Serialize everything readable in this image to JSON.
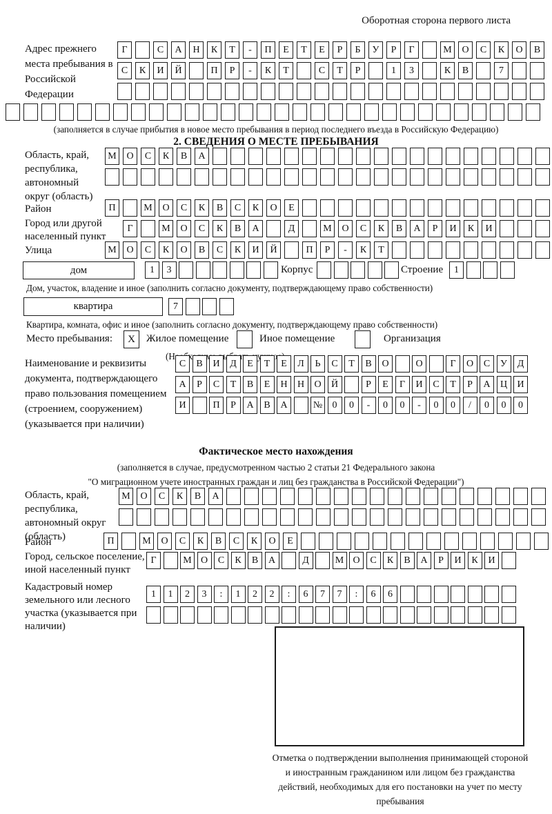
{
  "page": {
    "header_note": "Оборотная сторона первого листа"
  },
  "prev_address": {
    "label": "Адрес прежнего места пребывания в Российской Федерации",
    "rows": [
      "Г САНКТ-ПЕТЕРБУРГ МОСКОВ",
      "СКИЙ ПР-КТ СТР 13 КВ 7",
      ""
    ],
    "row_full": "",
    "caption": "(заполняется в случае прибытия в новое место пребывания в период последнего въезда в Российскую Федерацию)"
  },
  "section2": {
    "title": "2. СВЕДЕНИЯ О МЕСТЕ ПРЕБЫВАНИЯ",
    "oblast": {
      "label": "Область, край, республика, автономный округ (область)",
      "rows": [
        "МОСКВА",
        ""
      ]
    },
    "raion": {
      "label": "Район",
      "row": "П МОСКВСКОЕ"
    },
    "gorod": {
      "label": "Город или другой населенный пункт",
      "row": "Г МОСКВА Д МОСКВАРИКИ"
    },
    "ulitsa": {
      "label": "Улица",
      "row": "МОСКОВСКИЙ ПР-КТ"
    },
    "dom": {
      "box_label": "дом",
      "cells": "13",
      "korpus_label": "Корпус",
      "korpus_cells": "",
      "stroenie_label": "Строение",
      "stroenie_cells": "1",
      "caption": "Дом, участок, владение и иное (заполнить согласно документу, подтверждающему право собственности)"
    },
    "kvartira": {
      "box_label": "квартира",
      "cells": "7",
      "caption": "Квартира, комната, офис и иное (заполнить согласно документу, подтверждающему право собственности)"
    },
    "mesto": {
      "label": "Место пребывания:",
      "options": [
        {
          "label": "Жилое помещение",
          "mark": "X"
        },
        {
          "label": "Иное помещение",
          "mark": ""
        },
        {
          "label": "Организация",
          "mark": ""
        }
      ],
      "note": "(Необходимо выбрать нужное)"
    },
    "document": {
      "label": "Наименование и реквизиты документа, подтверждающего право пользования помещением (строением, сооружением) (указывается при наличии)",
      "rows": [
        "СВИДЕТЕЛЬСТВО О ГОСУД",
        "АРСТВЕННОЙ РЕГИСТРАЦИ",
        "И ПРАВА №00-00-00/000"
      ]
    }
  },
  "fact": {
    "title": "Фактическое место нахождения",
    "note_line1": "(заполняется в случае, предусмотренном частью 2 статьи 21 Федерального закона",
    "note_line2": "\"О миграционном учете иностранных граждан и лиц без гражданства в Российской Федерации\")",
    "oblast": {
      "label": "Область, край, республика, автономный округ (область)",
      "rows": [
        "МОСКВА",
        ""
      ]
    },
    "raion": {
      "label": "Район",
      "row": "П МОСКВСКОЕ"
    },
    "gorod": {
      "label": "Город, сельское поселение, иной населенный пункт",
      "row": "Г МОСКВА Д МОСКВАРИКИ"
    },
    "kadastr": {
      "label": "Кадастровый номер земельного или лесного участка (указывается при наличии)",
      "rows": [
        "1123:122:677:66",
        ""
      ]
    },
    "stamp_caption": "Отметка о подтверждении выполнения принимающей стороной и иностранным гражданином или лицом без гражданства действий, необходимых для его постановки на учет по месту пребывания"
  }
}
